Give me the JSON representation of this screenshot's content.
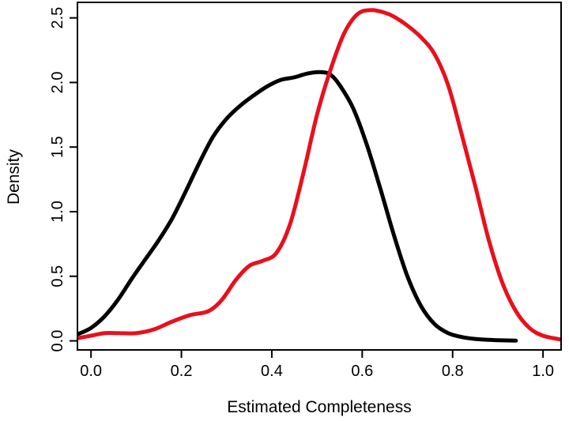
{
  "chart_data": {
    "type": "line",
    "title": "",
    "xlabel": "Estimated Completeness",
    "ylabel": "Density",
    "xlim": [
      -0.03,
      1.04
    ],
    "ylim": [
      -0.07,
      2.62
    ],
    "x_ticks": [
      0.0,
      0.2,
      0.4,
      0.6,
      0.8,
      1.0
    ],
    "x_tick_labels": [
      "0.0",
      "0.2",
      "0.4",
      "0.6",
      "0.8",
      "1.0"
    ],
    "y_ticks": [
      0.0,
      0.5,
      1.0,
      1.5,
      2.0,
      2.5
    ],
    "y_tick_labels": [
      "0.0",
      "0.5",
      "1.0",
      "1.5",
      "2.0",
      "2.5"
    ],
    "grid": false,
    "legend": "none",
    "series": [
      {
        "color": "#000000",
        "x": [
          -0.03,
          0.0,
          0.03,
          0.06,
          0.09,
          0.12,
          0.15,
          0.18,
          0.21,
          0.24,
          0.27,
          0.3,
          0.33,
          0.36,
          0.39,
          0.42,
          0.45,
          0.48,
          0.51,
          0.53,
          0.55,
          0.58,
          0.61,
          0.64,
          0.67,
          0.7,
          0.73,
          0.76,
          0.79,
          0.82,
          0.85,
          0.88,
          0.91,
          0.94
        ],
        "y": [
          0.05,
          0.1,
          0.19,
          0.32,
          0.48,
          0.63,
          0.78,
          0.95,
          1.16,
          1.38,
          1.58,
          1.72,
          1.82,
          1.9,
          1.97,
          2.02,
          2.04,
          2.07,
          2.08,
          2.06,
          1.98,
          1.8,
          1.52,
          1.18,
          0.82,
          0.5,
          0.27,
          0.13,
          0.06,
          0.03,
          0.015,
          0.008,
          0.004,
          0.002
        ]
      },
      {
        "color": "#e8101c",
        "x": [
          -0.03,
          0.0,
          0.03,
          0.06,
          0.1,
          0.14,
          0.18,
          0.22,
          0.26,
          0.29,
          0.32,
          0.35,
          0.38,
          0.41,
          0.44,
          0.47,
          0.5,
          0.53,
          0.56,
          0.59,
          0.62,
          0.65,
          0.67,
          0.7,
          0.73,
          0.76,
          0.79,
          0.82,
          0.85,
          0.88,
          0.91,
          0.94,
          0.97,
          1.0,
          1.04
        ],
        "y": [
          0.02,
          0.04,
          0.06,
          0.06,
          0.06,
          0.09,
          0.15,
          0.2,
          0.23,
          0.32,
          0.47,
          0.58,
          0.62,
          0.68,
          0.9,
          1.3,
          1.75,
          2.1,
          2.38,
          2.53,
          2.56,
          2.54,
          2.51,
          2.44,
          2.35,
          2.22,
          1.98,
          1.6,
          1.2,
          0.78,
          0.45,
          0.23,
          0.1,
          0.04,
          0.01
        ]
      }
    ]
  }
}
